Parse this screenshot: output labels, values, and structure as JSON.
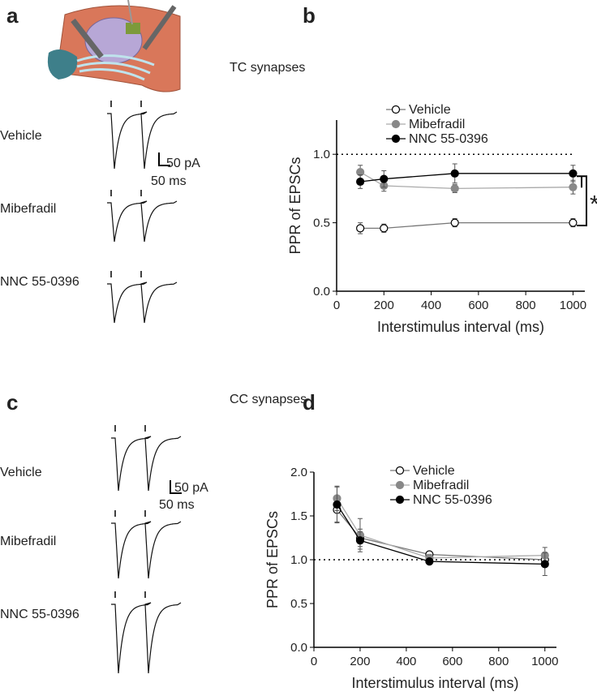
{
  "panel_labels": [
    "a",
    "b",
    "c",
    "d"
  ],
  "section_titles": [
    "TC synapses",
    "CC synapses"
  ],
  "traces": [
    {
      "labels": [
        "Vehicle",
        "Mibefradil",
        "NNC 55-0396"
      ],
      "scale_y": "50 pA",
      "scale_x": "50 ms"
    },
    {
      "labels": [
        "Vehicle",
        "Mibefradil",
        "NNC 55-0396"
      ],
      "scale_y": "50 pA",
      "scale_x": "50 ms"
    }
  ],
  "chart_data": [
    {
      "type": "line",
      "xlabel": "Interstimulus interval (ms)",
      "ylabel": "PPR of EPSCs",
      "x": [
        100,
        200,
        500,
        1000
      ],
      "xlim": [
        0,
        1050
      ],
      "xticks": [
        0,
        200,
        400,
        600,
        800,
        1000
      ],
      "ylim": [
        0,
        1.25
      ],
      "yticks": [
        {
          "value": 0,
          "label": "0.0"
        },
        {
          "value": 0.5,
          "label": "0.5"
        },
        {
          "value": 1,
          "label": "1.0"
        }
      ],
      "reference_line": 1,
      "annotation": "*",
      "series": [
        {
          "name": "Vehicle",
          "color": "#ffffff",
          "values": [
            0.46,
            0.46,
            0.5,
            0.5
          ],
          "errors": [
            0.04,
            0.03,
            0.03,
            0.03
          ]
        },
        {
          "name": "Mibefradil",
          "color": "#888888",
          "values": [
            0.87,
            0.77,
            0.75,
            0.76
          ],
          "errors": [
            0.05,
            0.04,
            0.03,
            0.05
          ]
        },
        {
          "name": "NNC 55-0396",
          "color": "#000000",
          "values": [
            0.8,
            0.82,
            0.86,
            0.86
          ],
          "errors": [
            0.05,
            0.06,
            0.07,
            0.06
          ]
        }
      ]
    },
    {
      "type": "line",
      "xlabel": "Interstimulus interval (ms)",
      "ylabel": "PPR of EPSCs",
      "x": [
        100,
        200,
        500,
        1000
      ],
      "xlim": [
        0,
        1050
      ],
      "xticks": [
        0,
        200,
        400,
        600,
        800,
        1000
      ],
      "ylim": [
        0,
        2
      ],
      "yticks": [
        {
          "value": 0,
          "label": "0.0"
        },
        {
          "value": 0.5,
          "label": "0.5"
        },
        {
          "value": 1,
          "label": "1.0"
        },
        {
          "value": 1.5,
          "label": "1.5"
        },
        {
          "value": 2,
          "label": "2.0"
        }
      ],
      "reference_line": 1,
      "series": [
        {
          "name": "Vehicle",
          "color": "#ffffff",
          "values": [
            1.57,
            1.25,
            1.06,
            1
          ],
          "errors": [
            0.15,
            0.1,
            0.03,
            0.08
          ]
        },
        {
          "name": "Mibefradil",
          "color": "#888888",
          "values": [
            1.7,
            1.28,
            1.02,
            1.05
          ],
          "errors": [
            0.14,
            0.19,
            0.04,
            0.09
          ]
        },
        {
          "name": "NNC 55-0396",
          "color": "#000000",
          "values": [
            1.63,
            1.22,
            0.98,
            0.95
          ],
          "errors": [
            0.2,
            0.1,
            0.03,
            0.13
          ]
        }
      ]
    }
  ]
}
